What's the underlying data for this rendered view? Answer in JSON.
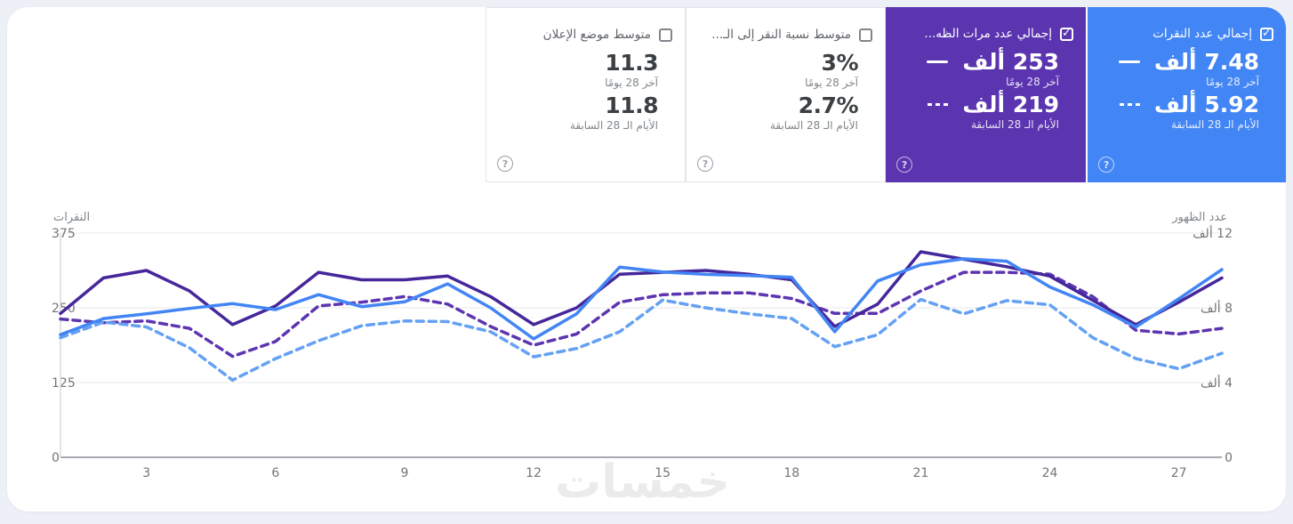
{
  "page": {
    "watermark": "خمسات"
  },
  "periods": {
    "current": "آخر 28 يومًا",
    "previous": "الأيام الـ 28 السابقة"
  },
  "cards": [
    {
      "title": "إجمالي عدد النقرات",
      "checked": true,
      "accent": "#4285f4",
      "current_value": "7.48 ألف",
      "previous_value": "5.92 ألف",
      "help": "?"
    },
    {
      "title": "إجمالي عدد مرات الظه...",
      "checked": true,
      "accent": "#5b34b0",
      "current_value": "253 ألف",
      "previous_value": "219 ألف",
      "help": "?"
    },
    {
      "title": "متوسط نسبة النقر إلى الـ...",
      "checked": false,
      "accent": "#ffffff",
      "current_value": "3%",
      "previous_value": "2.7%",
      "help": "?"
    },
    {
      "title": "متوسط موضع الإعلان",
      "checked": false,
      "accent": "#ffffff",
      "current_value": "11.3",
      "previous_value": "11.8",
      "help": "?"
    }
  ],
  "chart_data": {
    "type": "line",
    "days": 28,
    "x_ticks": [
      3,
      6,
      9,
      12,
      15,
      18,
      21,
      24,
      27
    ],
    "grid_values": [
      375,
      250,
      125,
      0
    ],
    "left_axis": {
      "title": "النقرات",
      "max": 375,
      "tick_labels": [
        "375",
        "250",
        "125",
        "0"
      ]
    },
    "right_axis": {
      "title": "عدد الظهور",
      "max": 12,
      "tick_labels": [
        "12 ألف",
        "8 ألف",
        "4 ألف",
        "0"
      ]
    },
    "series": [
      {
        "name": "impressions-previous",
        "axis": "right",
        "style": "dashed",
        "color": "#5e35b1",
        "values": [
          7.4,
          7.2,
          7.3,
          6.9,
          5.4,
          6.2,
          8.1,
          8.3,
          8.6,
          8.2,
          7.0,
          6.0,
          6.6,
          8.3,
          8.7,
          8.8,
          8.8,
          8.5,
          7.7,
          7.7,
          8.9,
          9.9,
          9.9,
          9.8,
          8.6,
          6.8,
          6.6,
          6.9
        ]
      },
      {
        "name": "clicks-previous",
        "axis": "left",
        "style": "dashed",
        "color": "#64a1f4",
        "values": [
          200,
          226,
          218,
          183,
          129,
          165,
          195,
          220,
          228,
          227,
          210,
          168,
          182,
          210,
          263,
          250,
          240,
          232,
          185,
          205,
          264,
          240,
          262,
          255,
          200,
          165,
          148,
          174
        ]
      },
      {
        "name": "impressions-current",
        "axis": "right",
        "style": "solid",
        "color": "#46279b",
        "values": [
          7.7,
          9.6,
          10.0,
          8.9,
          7.1,
          8.1,
          9.9,
          9.5,
          9.5,
          9.7,
          8.6,
          7.1,
          8.0,
          9.8,
          9.9,
          10.0,
          9.8,
          9.5,
          7.0,
          8.2,
          11.0,
          10.6,
          10.2,
          9.7,
          8.4,
          7.1,
          8.3,
          9.6
        ]
      },
      {
        "name": "clicks-current",
        "axis": "left",
        "style": "solid",
        "color": "#4285f4",
        "values": [
          205,
          232,
          240,
          249,
          257,
          247,
          272,
          252,
          260,
          290,
          250,
          198,
          240,
          318,
          310,
          306,
          304,
          301,
          210,
          295,
          322,
          332,
          328,
          285,
          255,
          218,
          265,
          314
        ]
      }
    ]
  }
}
